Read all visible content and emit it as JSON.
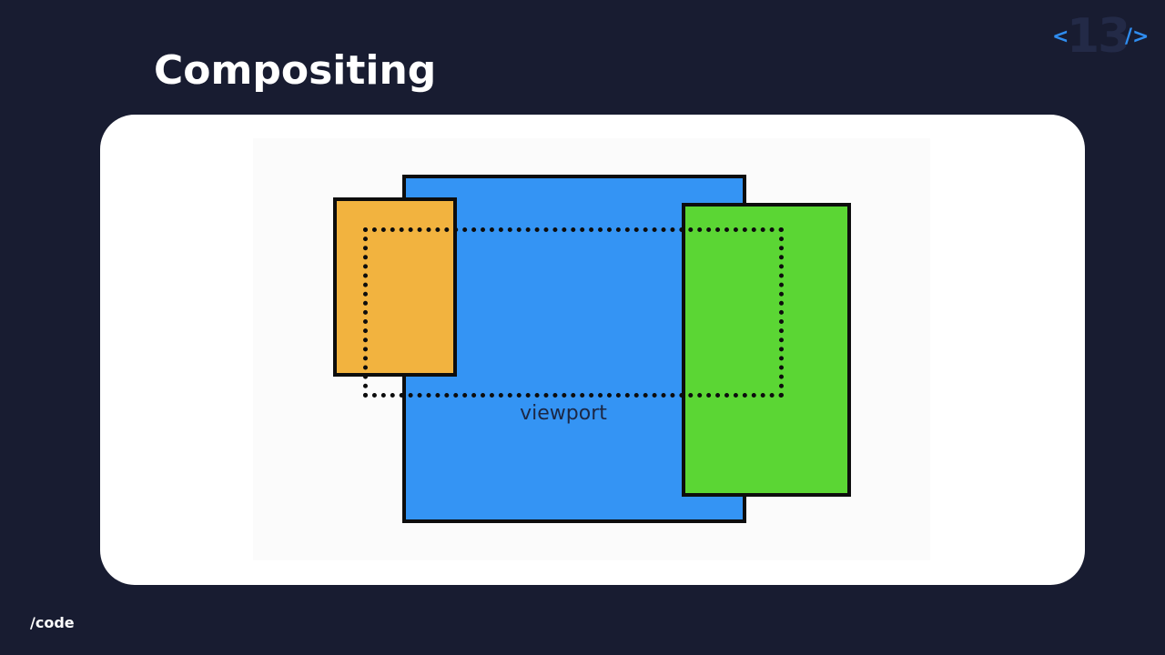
{
  "slide": {
    "title": "Compositing",
    "slide_number": "13",
    "logo_open": "<",
    "logo_close": "/>",
    "footer": "/code"
  },
  "diagram": {
    "viewport_label": "viewport",
    "layers": [
      {
        "name": "blue-layer",
        "color": "#3494f4"
      },
      {
        "name": "orange-layer",
        "color": "#f2b33f"
      },
      {
        "name": "green-layer",
        "color": "#5bd634"
      }
    ]
  },
  "colors": {
    "background": "#181c31",
    "accent": "#2f8df0",
    "card": "#ffffff"
  }
}
